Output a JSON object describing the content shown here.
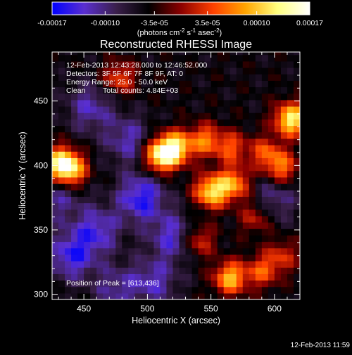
{
  "chart_data": {
    "type": "heatmap",
    "title": "Reconstructed RHESSI Image",
    "xlabel": "Heliocentric X (arcsec)",
    "ylabel": "Heliocentric Y (arcsec)",
    "xlim": [
      425,
      620
    ],
    "ylim": [
      296,
      488
    ],
    "x_ticks": [
      450,
      500,
      550,
      600
    ],
    "y_ticks": [
      300,
      350,
      400,
      450
    ],
    "grid": false,
    "colorbar": {
      "range": [
        -0.00017,
        0.00017
      ],
      "tick_values": [
        -0.00017,
        -0.0001,
        -3.5e-05,
        3.5e-05,
        0.0001,
        0.00017
      ],
      "tick_labels": [
        "-0.00017",
        "-0.00010",
        "-3.5e-05",
        "3.5e-05",
        "0.00010",
        "0.00017"
      ],
      "unit_label": "(photons cm",
      "unit_sup1": "-2",
      "unit_mid": " s",
      "unit_sup2": "-1",
      "unit_mid2": " asec",
      "unit_sup3": "-2",
      "unit_end": ")",
      "stops": [
        "#0000ff",
        "#5a2fd0",
        "#3a1f4a",
        "#000000",
        "#8b0000",
        "#ff4000",
        "#ffa500",
        "#ffff80",
        "#ffffff"
      ]
    },
    "annotations": {
      "time_range": "12-Feb-2013 12:43:28.000 to 12:46:52.000",
      "detectors": "Detectors: 3F 5F 6F 7F 8F 9F, AT: 0",
      "energy": "Energy Range: 25.0 - 50.0 keV",
      "clean_label": "Clean",
      "total_counts": "Total counts: 4.84E+03",
      "peak": "Position of Peak = [613,436]"
    },
    "hot_spots": [
      {
        "x": 432,
        "y": 402,
        "intensity": 0.9
      },
      {
        "x": 440,
        "y": 396,
        "intensity": 0.7
      },
      {
        "x": 478,
        "y": 468,
        "intensity": 0.5
      },
      {
        "x": 510,
        "y": 408,
        "intensity": 1.0
      },
      {
        "x": 522,
        "y": 414,
        "intensity": 0.9
      },
      {
        "x": 545,
        "y": 420,
        "intensity": 0.6
      },
      {
        "x": 566,
        "y": 414,
        "intensity": 0.5
      },
      {
        "x": 550,
        "y": 380,
        "intensity": 0.9
      },
      {
        "x": 568,
        "y": 386,
        "intensity": 0.7
      },
      {
        "x": 593,
        "y": 410,
        "intensity": 0.5
      },
      {
        "x": 613,
        "y": 436,
        "intensity": 1.0
      },
      {
        "x": 606,
        "y": 398,
        "intensity": 0.6
      },
      {
        "x": 540,
        "y": 342,
        "intensity": 0.5
      },
      {
        "x": 565,
        "y": 313,
        "intensity": 0.8
      },
      {
        "x": 590,
        "y": 318,
        "intensity": 0.5
      },
      {
        "x": 606,
        "y": 330,
        "intensity": 0.4
      },
      {
        "x": 585,
        "y": 360,
        "intensity": 0.4
      }
    ],
    "cold_spots": [
      {
        "x": 440,
        "y": 330,
        "intensity": 0.8
      },
      {
        "x": 460,
        "y": 350,
        "intensity": 0.7
      },
      {
        "x": 495,
        "y": 375,
        "intensity": 0.9
      },
      {
        "x": 520,
        "y": 345,
        "intensity": 0.7
      },
      {
        "x": 485,
        "y": 420,
        "intensity": 0.6
      },
      {
        "x": 455,
        "y": 445,
        "intensity": 0.6
      },
      {
        "x": 505,
        "y": 310,
        "intensity": 0.6
      },
      {
        "x": 600,
        "y": 375,
        "intensity": 0.5
      },
      {
        "x": 430,
        "y": 375,
        "intensity": 0.5
      },
      {
        "x": 475,
        "y": 305,
        "intensity": 0.5
      }
    ]
  },
  "footer": {
    "timestamp": "12-Feb-2013 11:59"
  }
}
